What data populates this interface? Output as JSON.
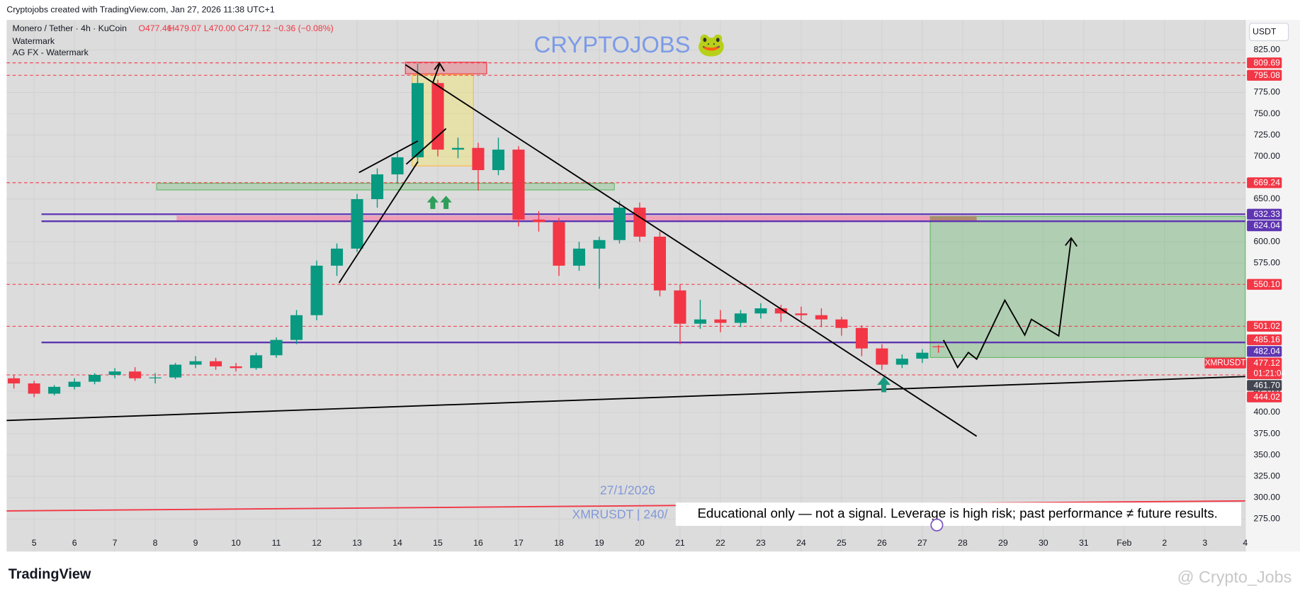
{
  "header": {
    "caption": "Cryptojobs created with TradingView.com, Jan 27, 2026 11:38 UTC+1"
  },
  "footer": {
    "logo": "TradingView",
    "watermark": "@ Crypto_Jobs"
  },
  "chart_data": {
    "type": "candlestick",
    "title": "Monero / Tether · 4h · KuCoin",
    "ohlc": {
      "open": "O477.46",
      "high": "H479.07",
      "low": "L470.00",
      "close": "C477.12",
      "change": "−0.36 (−0.08%)"
    },
    "indicators": [
      "Watermark",
      "AG FX - Watermark"
    ],
    "watermark_text": "CRYPTOJOBS 🐸",
    "currency": "USDT",
    "date_stamp": "27/1/2026",
    "symbol_stamp": "XMRUSDT | 240/",
    "disclaimer": "Educational only — not a signal. Leverage is high risk; past performance ≠ future results.",
    "symbol": "XMRUSDT",
    "countdown": "01:21:04",
    "up_color": "#089981",
    "down_color": "#f23645",
    "x": [
      4.5,
      5,
      5.5,
      6,
      6.5,
      7,
      7.5,
      8,
      8.5,
      9,
      9.5,
      10,
      10.5,
      11,
      11.5,
      12,
      12.5,
      13,
      13.5,
      14,
      14.5,
      15,
      15.5,
      16,
      16.5,
      17,
      17.5,
      18,
      18.5,
      19,
      19.5,
      20,
      20.5,
      21,
      21.5,
      22,
      22.5,
      23,
      23.5,
      24,
      24.5,
      25,
      25.5,
      26,
      26.5,
      27,
      27.4
    ],
    "open": [
      440,
      434,
      422,
      430,
      436,
      444,
      448,
      440,
      441,
      456,
      460,
      454,
      452,
      467,
      485,
      514,
      572,
      592,
      650,
      679,
      699,
      786,
      708,
      710,
      684,
      708,
      626,
      623,
      572,
      592,
      602,
      640,
      606,
      543,
      504,
      509,
      505,
      516,
      522,
      516,
      514,
      509,
      499,
      475,
      456,
      463,
      477.46
    ],
    "high": [
      444,
      437,
      432,
      440,
      446,
      452,
      453,
      446,
      458,
      466,
      464,
      458,
      470,
      488,
      520,
      578,
      598,
      656,
      686,
      705,
      809,
      790,
      722,
      716,
      722,
      712,
      636,
      628,
      600,
      606,
      648,
      646,
      612,
      550,
      532,
      520,
      520,
      528,
      526,
      524,
      522,
      512,
      502,
      480,
      468,
      474,
      479.07
    ],
    "low": [
      428,
      418,
      420,
      427,
      433,
      440,
      437,
      434,
      439,
      452,
      450,
      448,
      450,
      464,
      480,
      508,
      560,
      588,
      640,
      668,
      692,
      700,
      698,
      660,
      678,
      618,
      612,
      560,
      566,
      545,
      598,
      600,
      536,
      480,
      498,
      494,
      500,
      510,
      506,
      508,
      500,
      490,
      466,
      450,
      452,
      458,
      470
    ],
    "close": [
      434,
      422,
      430,
      436,
      444,
      448,
      440,
      441,
      456,
      460,
      454,
      452,
      467,
      485,
      514,
      572,
      592,
      650,
      679,
      699,
      786,
      708,
      710,
      684,
      708,
      626,
      623,
      572,
      592,
      602,
      640,
      606,
      543,
      504,
      509,
      505,
      516,
      522,
      516,
      514,
      509,
      499,
      475,
      456,
      463,
      470,
      477.12
    ],
    "xlim": [
      4.32,
      35.0
    ],
    "xticks": [
      5,
      6,
      7,
      8,
      9,
      10,
      11,
      12,
      13,
      14,
      15,
      16,
      17,
      18,
      19,
      20,
      21,
      22,
      23,
      24,
      25,
      26,
      27,
      28,
      29,
      30,
      31,
      {
        "value": 32,
        "label": "Feb"
      },
      {
        "value": 33,
        "label": "2"
      },
      {
        "value": 34,
        "label": "3"
      },
      {
        "value": 35,
        "label": "4"
      }
    ],
    "ylim": [
      237,
      860
    ],
    "yticks": [
      {
        "value": 825,
        "label": "825.00"
      },
      {
        "value": 775,
        "label": "775.00"
      },
      {
        "value": 750,
        "label": "750.00"
      },
      {
        "value": 725,
        "label": "725.00"
      },
      {
        "value": 700,
        "label": "700.00"
      },
      {
        "value": 650,
        "label": "650.00"
      },
      {
        "value": 600,
        "label": "600.00"
      },
      {
        "value": 575,
        "label": "575.00"
      },
      {
        "value": 425,
        "label": "425.00"
      },
      {
        "value": 400,
        "label": "400.00"
      },
      {
        "value": 375,
        "label": "375.00"
      },
      {
        "value": 350,
        "label": "350.00"
      },
      {
        "value": 325,
        "label": "325.00"
      },
      {
        "value": 300,
        "label": "300.00"
      },
      {
        "value": 275,
        "label": "275.00"
      }
    ],
    "grid": true,
    "levels": [
      {
        "value": 809.69,
        "label": "809.69",
        "color": "#f23645",
        "style": "dashed"
      },
      {
        "value": 795.08,
        "label": "795.08",
        "color": "#f23645",
        "style": "dashed"
      },
      {
        "value": 669.24,
        "label": "669.24",
        "color": "#f23645",
        "style": "dashed"
      },
      {
        "value": 632.33,
        "label": "632.33",
        "color": "#5e35b1",
        "style": "solid"
      },
      {
        "value": 624.04,
        "label": "624.04",
        "color": "#5e35b1",
        "style": "solid"
      },
      {
        "value": 550.1,
        "label": "550.10",
        "color": "#f23645",
        "style": "dashed"
      },
      {
        "value": 501.02,
        "label": "501.02",
        "color": "#f23645",
        "style": "dashed"
      },
      {
        "value": 485.16,
        "label": "485.16",
        "color": "#f23645",
        "style": "none"
      },
      {
        "value": 482.04,
        "label": "482.04",
        "color": "#5e35b1",
        "style": "solid"
      },
      {
        "value": 477.12,
        "label": "477.12",
        "color": "#f23645",
        "style": "none",
        "current": true
      },
      {
        "value": 461.7,
        "label": "461.70",
        "color": "#434651",
        "style": "none"
      },
      {
        "value": 444.02,
        "label": "444.02",
        "color": "#f23645",
        "style": "dashed"
      }
    ]
  }
}
